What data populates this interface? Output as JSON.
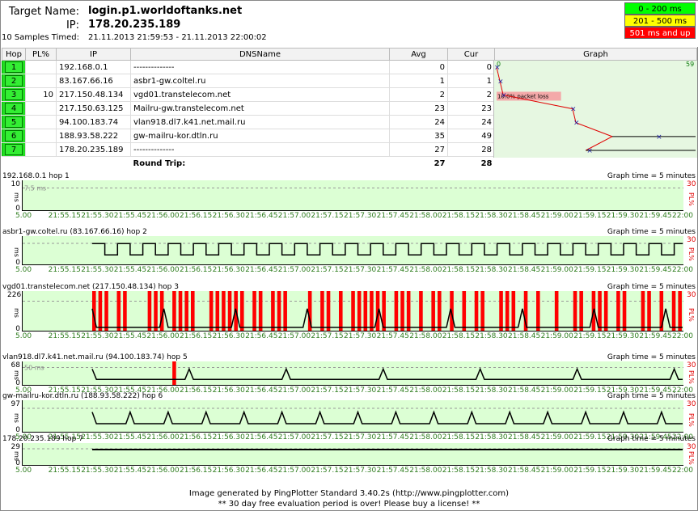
{
  "header": {
    "target_label": "Target Name:",
    "target_value": "login.p1.worldoftanks.net",
    "ip_label": "IP:",
    "ip_value": "178.20.235.189",
    "samples_label": "10 Samples Timed:",
    "samples_value": "21.11.2013 21:59:53 - 21.11.2013 22:00:02"
  },
  "legend": [
    {
      "text": "0 - 200 ms",
      "color": "#00ff00"
    },
    {
      "text": "201 - 500 ms",
      "color": "#ffff00"
    },
    {
      "text": "501 ms and up",
      "color": "#ff0000"
    }
  ],
  "columns": [
    "Hop",
    "PL%",
    "IP",
    "DNSName",
    "Avg",
    "Cur",
    "Graph"
  ],
  "hops": [
    {
      "hop": "1",
      "pl": "",
      "ip": "192.168.0.1",
      "dns": "--------------",
      "avg": "0",
      "cur": "0"
    },
    {
      "hop": "2",
      "pl": "",
      "ip": "83.167.66.16",
      "dns": "asbr1-gw.coltel.ru",
      "avg": "1",
      "cur": "1"
    },
    {
      "hop": "3",
      "pl": "10",
      "ip": "217.150.48.134",
      "dns": "vgd01.transtelecom.net",
      "avg": "2",
      "cur": "2"
    },
    {
      "hop": "4",
      "pl": "",
      "ip": "217.150.63.125",
      "dns": "Mailru-gw.transtelecom.net",
      "avg": "23",
      "cur": "23"
    },
    {
      "hop": "5",
      "pl": "",
      "ip": "94.100.183.74",
      "dns": "vlan918.dl7.k41.net.mail.ru",
      "avg": "24",
      "cur": "24"
    },
    {
      "hop": "6",
      "pl": "",
      "ip": "188.93.58.222",
      "dns": "gw-mailru-kor.dtln.ru",
      "avg": "35",
      "cur": "49"
    },
    {
      "hop": "7",
      "pl": "",
      "ip": "178.20.235.189",
      "dns": "--------------",
      "avg": "27",
      "cur": "28"
    }
  ],
  "round_trip": {
    "label": "Round Trip:",
    "avg": "27",
    "cur": "28"
  },
  "graph": {
    "min_label": "0",
    "max_label": "59",
    "packet_loss_label": "10.0% packet loss"
  },
  "panels": [
    {
      "title": "192.168.0.1 hop 1",
      "ytop": "10",
      "ybot": "0",
      "ref": "7.5 ms",
      "pl": "30",
      "loss": []
    },
    {
      "title": "asbr1-gw.coltel.ru (83.167.66.16) hop 2",
      "ytop": "",
      "ybot": "0",
      "ref": "",
      "pl": "30",
      "loss": []
    },
    {
      "title": "vgd01.transtelecom.net (217.150.48.134) hop 3",
      "ytop": "226",
      "ybot": "0",
      "ref": "",
      "pl": "30",
      "loss": [
        0,
        1,
        2,
        4,
        5,
        9,
        10,
        11,
        13,
        14,
        15,
        16,
        19,
        20,
        21,
        22,
        23,
        24,
        26,
        27,
        29,
        30,
        31,
        35,
        37,
        38,
        40,
        42,
        43,
        44,
        45,
        46,
        47,
        49,
        50,
        51,
        53,
        55,
        56,
        58,
        60,
        62,
        63,
        66,
        67,
        68,
        70,
        72,
        75,
        78,
        79,
        81,
        82,
        83,
        85,
        86,
        89,
        90,
        92,
        94,
        95
      ]
    },
    {
      "title": "vlan918.dl7.k41.net.mail.ru (94.100.183.74) hop 5",
      "ytop": "68",
      "ybot": "0",
      "ref": "50 ms",
      "pl": "30",
      "loss": [
        13
      ]
    },
    {
      "title": "gw-mailru-kor.dtln.ru (188.93.58.222) hop 6",
      "ytop": "97",
      "ybot": "0",
      "ref": "",
      "pl": "30",
      "loss": []
    },
    {
      "title": "178.20.235.189 hop 7",
      "ytop": "29",
      "ybot": "0",
      "ref": "",
      "pl": "30",
      "loss": []
    }
  ],
  "graph_time": "Graph time = 5 minutes",
  "ms_label": "ms",
  "pl_axis_label": "PL%",
  "x_ticks": [
    "5.00",
    "21:55.15",
    "21:55.30",
    "21:55.45",
    "21:56.00",
    "21:56.15",
    "21:56.30",
    "21:56.45",
    "21:57.00",
    "21:57.15",
    "21:57.30",
    "21:57.45",
    "21:58.00",
    "21:58.15",
    "21:58.30",
    "21:58.45",
    "21:59.00",
    "21:59.15",
    "21:59.30",
    "21:59.45",
    "22:00"
  ],
  "footer": {
    "line1": "Image generated by PingPlotter Standard 3.40.2s (http://www.pingplotter.com)",
    "line2": "** 30 day free evaluation period is over!  Please buy a license! **"
  }
}
